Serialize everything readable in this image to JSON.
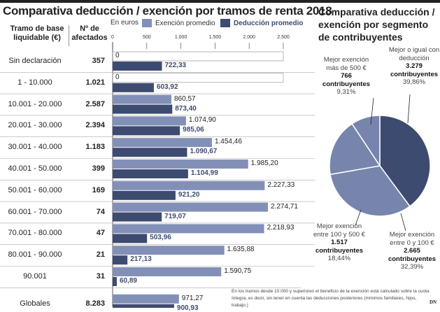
{
  "title": "Comparativa deducción / exención por tramos de renta 2018",
  "col_tramo": "Tramo de base liquidable (€)",
  "col_afectados": "Nº de afectados",
  "chart_data": [
    {
      "type": "bar",
      "unit_label": "En euros",
      "xlim": [
        0,
        2500
      ],
      "ticks": [
        "0",
        "500",
        "1.000",
        "1.500",
        "2.000",
        "2.500"
      ],
      "tick_values": [
        0,
        500,
        1000,
        1500,
        2000,
        2500
      ],
      "categories": [
        "Sin declaración",
        "1 - 10.000",
        "10.001 - 20.000",
        "20.001 - 30.000",
        "30.001 - 40.000",
        "40.001 - 50.000",
        "50.001 - 60.000",
        "60.001 - 70.000",
        "70.001 - 80.000",
        "80.001 - 90.000",
        "90.001",
        "Globales"
      ],
      "afectados": [
        "357",
        "1.021",
        "2.587",
        "2.394",
        "1.183",
        "399",
        "169",
        "74",
        "47",
        "21",
        "31",
        "8.283"
      ],
      "series": [
        {
          "name": "Exención promedio",
          "color": "#8290b8",
          "values": [
            0,
            0,
            860.57,
            1074.9,
            1454.46,
            1985.2,
            2227.33,
            2274.71,
            2218.93,
            1635.88,
            1590.75,
            971.27
          ],
          "labels": [
            "0",
            "0",
            "860,57",
            "1.074,90",
            "1.454,46",
            "1.985,20",
            "2.227,33",
            "2.274,71",
            "2.218,93",
            "1.635,88",
            "1.590,75",
            "971,27"
          ]
        },
        {
          "name": "Deducción promedio",
          "color": "#3e4b70",
          "values": [
            722.33,
            603.92,
            873.4,
            985.06,
            1090.67,
            1104.99,
            921.2,
            719.07,
            503.96,
            217.13,
            60.89,
            900.93
          ],
          "labels": [
            "722,33",
            "603,92",
            "873,40",
            "985,06",
            "1.090,67",
            "1.104,99",
            "921,20",
            "719,07",
            "503,96",
            "217,13",
            "60,89",
            "900,93"
          ]
        }
      ]
    },
    {
      "type": "pie",
      "title": "Comparativa deducción / exención por segmento de contribuyentes",
      "slices": [
        {
          "label": "Mejor o igual con deducción",
          "count": "3.279",
          "unit": "contribuyentes",
          "pct_label": "39,86%",
          "value": 39.86,
          "color": "#3e4b70"
        },
        {
          "label": "Mejor exención entre 0 y 100 €",
          "count": "2.665",
          "unit": "contribuyentes",
          "pct_label": "32,39%",
          "value": 32.39,
          "color": "#7785ad"
        },
        {
          "label": "Mejor exención entre 100 y 500 €",
          "count": "1.517",
          "unit": "contribuyentes",
          "pct_label": "18,44%",
          "value": 18.44,
          "color": "#7785ad"
        },
        {
          "label": "Mejor exención más de 500 €",
          "count": "766",
          "unit": "contribuyentes",
          "pct_label": "9,31%",
          "value": 9.31,
          "color": "#7785ad"
        }
      ]
    }
  ],
  "note": "En los tramos desde 10.000 y superiores el beneficio de la exención está calculado sobre la cuota íntegra, es decir, sin tener en cuenta las deducciones posteriores (mínimos familiares, hijos, trabajo.)",
  "logo": "DN"
}
